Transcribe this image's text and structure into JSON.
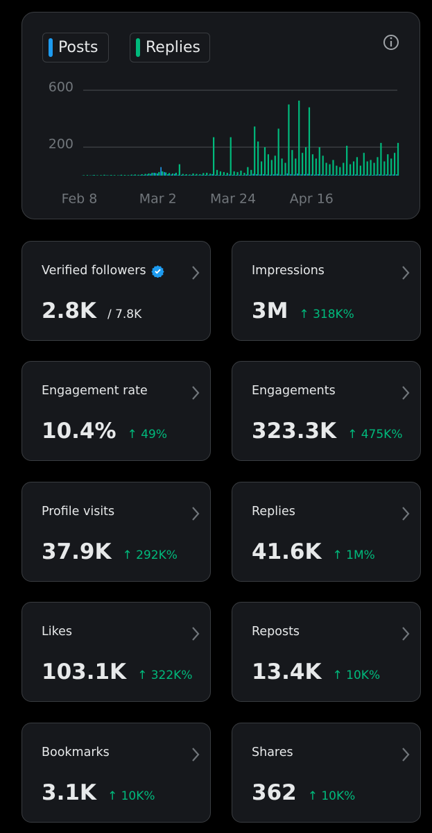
{
  "chart_data": {
    "type": "bar",
    "categories": [
      "Feb 8",
      null,
      null,
      null,
      null,
      null,
      null,
      null,
      null,
      null,
      null,
      null,
      null,
      null,
      null,
      null,
      null,
      null,
      null,
      null,
      null,
      null,
      null,
      "Mar 2",
      null,
      null,
      null,
      null,
      null,
      null,
      null,
      null,
      null,
      null,
      null,
      null,
      null,
      null,
      null,
      null,
      null,
      null,
      null,
      null,
      null,
      "Mar 24",
      null,
      null,
      null,
      null,
      null,
      null,
      null,
      null,
      null,
      null,
      null,
      null,
      null,
      null,
      null,
      null,
      null,
      null,
      null,
      null,
      null,
      null,
      "Apr 16",
      null,
      null,
      null,
      null,
      null,
      null,
      null,
      null,
      null,
      null,
      null,
      null,
      null,
      null,
      null,
      null,
      null,
      null,
      null,
      null,
      null,
      null,
      null,
      null
    ],
    "series": [
      {
        "name": "Posts",
        "color": "#1d9bf0",
        "values": [
          1,
          0,
          1,
          2,
          1,
          0,
          1,
          2,
          1,
          1,
          0,
          2,
          1,
          1,
          2,
          3,
          2,
          4,
          5,
          8,
          12,
          20,
          15,
          60,
          25,
          10,
          8,
          12,
          6,
          5,
          4,
          3,
          5,
          4,
          3,
          6,
          5,
          4,
          10,
          6,
          5,
          4,
          5,
          8,
          6,
          5,
          6,
          4,
          8,
          6,
          12,
          10,
          8,
          10,
          8,
          6,
          9,
          12,
          7,
          6,
          15,
          10,
          8,
          14,
          9,
          10,
          12,
          8,
          7,
          10,
          8,
          6,
          5,
          7,
          5,
          4,
          6,
          9,
          5,
          6,
          8,
          5,
          7,
          6,
          6,
          5,
          7,
          9,
          6,
          8,
          7,
          8,
          9
        ]
      },
      {
        "name": "Replies",
        "color": "#00ba7c",
        "values": [
          3,
          4,
          2,
          5,
          3,
          4,
          6,
          3,
          5,
          4,
          3,
          6,
          5,
          4,
          7,
          8,
          6,
          10,
          12,
          15,
          20,
          18,
          25,
          30,
          22,
          18,
          15,
          20,
          80,
          12,
          10,
          8,
          15,
          12,
          10,
          18,
          20,
          14,
          270,
          40,
          30,
          25,
          20,
          270,
          30,
          25,
          35,
          20,
          60,
          40,
          345,
          240,
          100,
          200,
          150,
          110,
          140,
          330,
          120,
          90,
          500,
          180,
          120,
          527,
          160,
          200,
          480,
          150,
          120,
          200,
          140,
          90,
          80,
          110,
          70,
          60,
          90,
          210,
          80,
          100,
          130,
          70,
          160,
          100,
          110,
          90,
          130,
          230,
          100,
          150,
          120,
          160,
          230
        ]
      }
    ],
    "ylim": [
      0,
      600
    ],
    "yticks": [
      200,
      600
    ],
    "grid": true
  },
  "cards": [
    {
      "label": "Verified followers",
      "verified": true,
      "value": "2.8K",
      "total": "/ 7.8K"
    },
    {
      "label": "Impressions",
      "value": "3M",
      "change": "↑ 318K%"
    },
    {
      "label": "Engagement rate",
      "value": "10.4%",
      "change": "↑ 49%"
    },
    {
      "label": "Engagements",
      "value": "323.3K",
      "change": "↑ 475K%"
    },
    {
      "label": "Profile visits",
      "value": "37.9K",
      "change": "↑ 292K%"
    },
    {
      "label": "Replies",
      "value": "41.6K",
      "change": "↑ 1M%"
    },
    {
      "label": "Likes",
      "value": "103.1K",
      "change": "↑ 322K%"
    },
    {
      "label": "Reposts",
      "value": "13.4K",
      "change": "↑ 10K%"
    },
    {
      "label": "Bookmarks",
      "value": "3.1K",
      "change": "↑ 10K%"
    },
    {
      "label": "Shares",
      "value": "362",
      "change": "↑ 10K%"
    }
  ]
}
